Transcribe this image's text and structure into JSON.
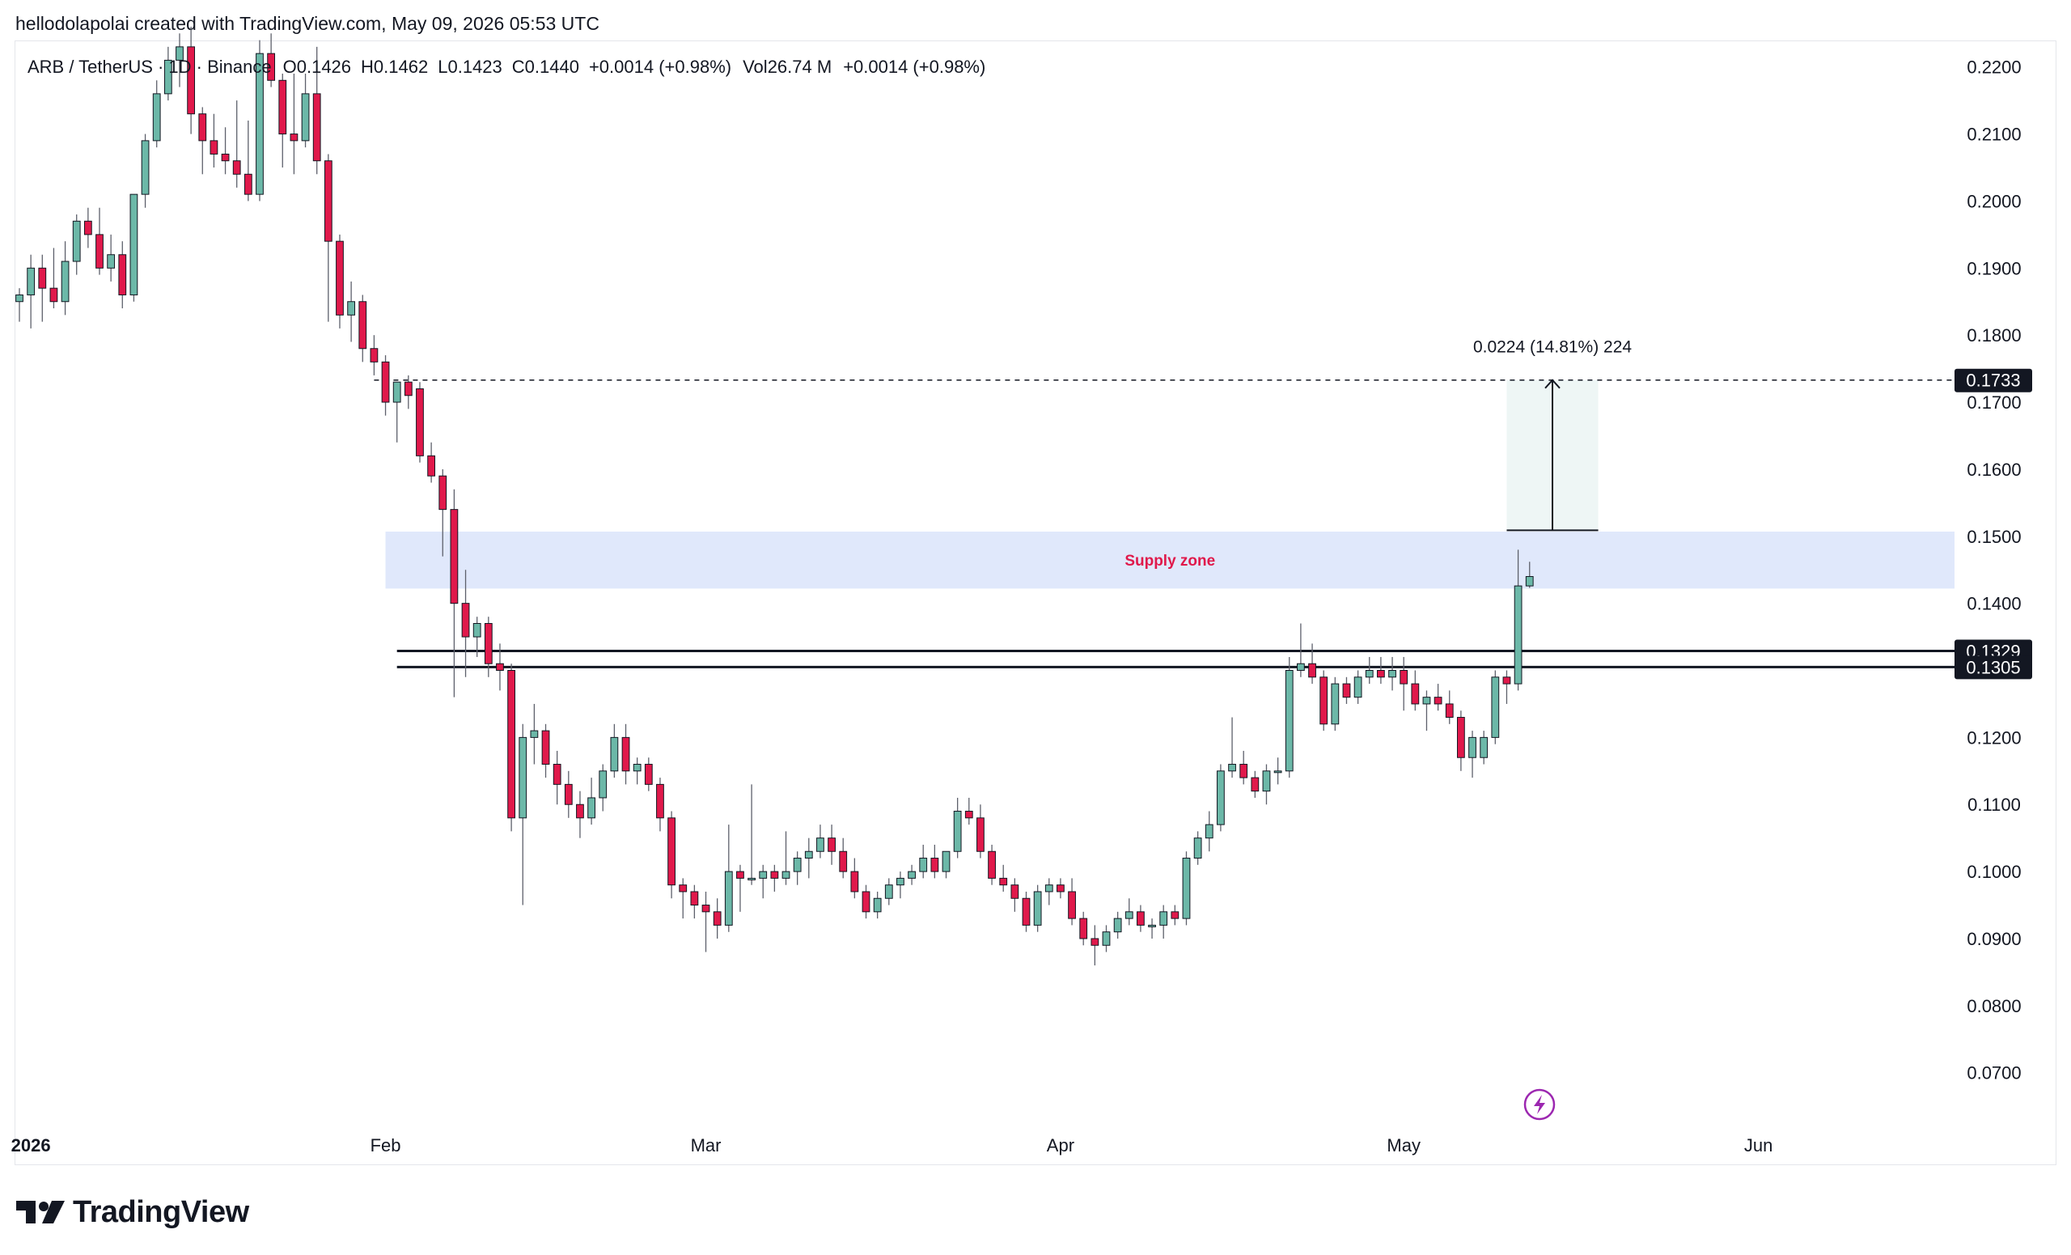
{
  "header": {
    "credit": "hellodolapolai created with TradingView.com, May 09, 2026 05:53 UTC"
  },
  "legend": {
    "symbol": "ARB / TetherUS · 1D · Binance",
    "open_label": "O",
    "open": "0.1426",
    "high_label": "H",
    "high": "0.1462",
    "low_label": "L",
    "low": "0.1423",
    "close_label": "C",
    "close": "0.1440",
    "change": "+0.0014 (+0.98%)",
    "vol_label": "Vol",
    "vol": "26.74 M",
    "vol_change": "+0.0014 (+0.98%)"
  },
  "annotations": {
    "supply_zone": "Supply zone",
    "measure": "0.0224 (14.81%) 224"
  },
  "logo": {
    "text": "TradingView"
  },
  "colors": {
    "up": "#6cb8a8",
    "down": "#e0194b",
    "zone_fill": "#e0e8fb",
    "zone_text": "#e0194b",
    "measure_fill": "#eef6f5",
    "bolt": "#9c27b0",
    "text": "#131722",
    "grid": "#e4e6eb"
  },
  "chart_data": {
    "type": "candlestick",
    "interval": "1D",
    "price_axis": {
      "range": [
        0.062,
        0.2225
      ],
      "ticks": [
        "0.2200",
        "0.2100",
        "0.2000",
        "0.1900",
        "0.1800",
        "0.1700",
        "0.1600",
        "0.1500",
        "0.1400",
        "0.1300",
        "0.1200",
        "0.1100",
        "0.1000",
        "0.0900",
        "0.0800",
        "0.0700"
      ]
    },
    "time_axis": {
      "range": [
        "2025-12-31",
        "2026-06-18"
      ],
      "labels": [
        {
          "label": "2026",
          "date": "2026-01-01",
          "bold": true
        },
        {
          "label": "Feb",
          "date": "2026-02-01",
          "bold": false
        },
        {
          "label": "Mar",
          "date": "2026-03-01",
          "bold": false
        },
        {
          "label": "Apr",
          "date": "2026-04-01",
          "bold": false
        },
        {
          "label": "May",
          "date": "2026-05-01",
          "bold": false
        },
        {
          "label": "Jun",
          "date": "2026-06-01",
          "bold": false
        }
      ]
    },
    "price_labels": [
      {
        "value": 0.1733,
        "text": "0.1733"
      },
      {
        "value": 0.1329,
        "text": "0.1329"
      },
      {
        "value": 0.1305,
        "text": "0.1305"
      }
    ],
    "horizontal_lines": [
      {
        "price": 0.1733,
        "from": "2026-01-31",
        "style": "dashed"
      },
      {
        "price": 0.1329,
        "from": "2026-02-02",
        "style": "solid"
      },
      {
        "price": 0.1305,
        "from": "2026-02-02",
        "style": "solid"
      }
    ],
    "supply_zone": {
      "from": "2026-02-01",
      "to": "2026-06-18",
      "low": 0.1422,
      "high": 0.1507
    },
    "measure": {
      "from": "2026-05-10",
      "to": "2026-05-18",
      "low": 0.1509,
      "high": 0.1733
    },
    "candles": [
      [
        "2025-12-31",
        0.185,
        0.187,
        0.182,
        0.186
      ],
      [
        "2026-01-01",
        0.186,
        0.192,
        0.181,
        0.19
      ],
      [
        "2026-01-02",
        0.19,
        0.192,
        0.182,
        0.187
      ],
      [
        "2026-01-03",
        0.187,
        0.193,
        0.184,
        0.185
      ],
      [
        "2026-01-04",
        0.185,
        0.194,
        0.183,
        0.191
      ],
      [
        "2026-01-05",
        0.191,
        0.198,
        0.189,
        0.197
      ],
      [
        "2026-01-06",
        0.197,
        0.199,
        0.193,
        0.195
      ],
      [
        "2026-01-07",
        0.195,
        0.199,
        0.189,
        0.19
      ],
      [
        "2026-01-08",
        0.19,
        0.195,
        0.188,
        0.192
      ],
      [
        "2026-01-09",
        0.192,
        0.194,
        0.184,
        0.186
      ],
      [
        "2026-01-10",
        0.186,
        0.201,
        0.185,
        0.201
      ],
      [
        "2026-01-11",
        0.201,
        0.21,
        0.199,
        0.209
      ],
      [
        "2026-01-12",
        0.209,
        0.218,
        0.208,
        0.216
      ],
      [
        "2026-01-13",
        0.216,
        0.223,
        0.215,
        0.221
      ],
      [
        "2026-01-14",
        0.221,
        0.225,
        0.217,
        0.223
      ],
      [
        "2026-01-15",
        0.223,
        0.226,
        0.21,
        0.213
      ],
      [
        "2026-01-16",
        0.213,
        0.214,
        0.204,
        0.209
      ],
      [
        "2026-01-17",
        0.209,
        0.213,
        0.205,
        0.207
      ],
      [
        "2026-01-18",
        0.207,
        0.211,
        0.204,
        0.206
      ],
      [
        "2026-01-19",
        0.206,
        0.215,
        0.202,
        0.204
      ],
      [
        "2026-01-20",
        0.204,
        0.212,
        0.2,
        0.201
      ],
      [
        "2026-01-21",
        0.201,
        0.224,
        0.2,
        0.222
      ],
      [
        "2026-01-22",
        0.222,
        0.225,
        0.217,
        0.218
      ],
      [
        "2026-01-23",
        0.218,
        0.219,
        0.205,
        0.21
      ],
      [
        "2026-01-24",
        0.21,
        0.219,
        0.204,
        0.209
      ],
      [
        "2026-01-25",
        0.209,
        0.219,
        0.208,
        0.216
      ],
      [
        "2026-01-26",
        0.216,
        0.223,
        0.204,
        0.206
      ],
      [
        "2026-01-27",
        0.206,
        0.207,
        0.182,
        0.194
      ],
      [
        "2026-01-28",
        0.194,
        0.195,
        0.181,
        0.183
      ],
      [
        "2026-01-29",
        0.183,
        0.188,
        0.179,
        0.185
      ],
      [
        "2026-01-30",
        0.185,
        0.186,
        0.176,
        0.178
      ],
      [
        "2026-01-31",
        0.178,
        0.18,
        0.174,
        0.176
      ],
      [
        "2026-02-01",
        0.176,
        0.177,
        0.168,
        0.17
      ],
      [
        "2026-02-02",
        0.17,
        0.172,
        0.164,
        0.173
      ],
      [
        "2026-02-03",
        0.173,
        0.174,
        0.169,
        0.171
      ],
      [
        "2026-02-04",
        0.172,
        0.173,
        0.161,
        0.162
      ],
      [
        "2026-02-05",
        0.162,
        0.164,
        0.158,
        0.159
      ],
      [
        "2026-02-06",
        0.159,
        0.16,
        0.147,
        0.154
      ],
      [
        "2026-02-07",
        0.154,
        0.157,
        0.126,
        0.14
      ],
      [
        "2026-02-08",
        0.14,
        0.145,
        0.129,
        0.135
      ],
      [
        "2026-02-09",
        0.135,
        0.138,
        0.132,
        0.137
      ],
      [
        "2026-02-10",
        0.137,
        0.138,
        0.129,
        0.131
      ],
      [
        "2026-02-11",
        0.131,
        0.134,
        0.127,
        0.13
      ],
      [
        "2026-02-12",
        0.13,
        0.131,
        0.106,
        0.108
      ],
      [
        "2026-02-13",
        0.108,
        0.122,
        0.095,
        0.12
      ],
      [
        "2026-02-14",
        0.12,
        0.125,
        0.116,
        0.121
      ],
      [
        "2026-02-15",
        0.121,
        0.122,
        0.114,
        0.116
      ],
      [
        "2026-02-16",
        0.116,
        0.118,
        0.11,
        0.113
      ],
      [
        "2026-02-17",
        0.113,
        0.115,
        0.108,
        0.11
      ],
      [
        "2026-02-18",
        0.11,
        0.112,
        0.105,
        0.108
      ],
      [
        "2026-02-19",
        0.108,
        0.114,
        0.107,
        0.111
      ],
      [
        "2026-02-20",
        0.111,
        0.116,
        0.109,
        0.115
      ],
      [
        "2026-02-21",
        0.115,
        0.122,
        0.114,
        0.12
      ],
      [
        "2026-02-22",
        0.12,
        0.122,
        0.113,
        0.115
      ],
      [
        "2026-02-23",
        0.115,
        0.117,
        0.113,
        0.116
      ],
      [
        "2026-02-24",
        0.116,
        0.117,
        0.112,
        0.113
      ],
      [
        "2026-02-25",
        0.113,
        0.114,
        0.106,
        0.108
      ],
      [
        "2026-02-26",
        0.108,
        0.109,
        0.096,
        0.098
      ],
      [
        "2026-02-27",
        0.098,
        0.099,
        0.093,
        0.097
      ],
      [
        "2026-02-28",
        0.097,
        0.098,
        0.093,
        0.095
      ],
      [
        "2026-03-01",
        0.095,
        0.097,
        0.088,
        0.094
      ],
      [
        "2026-03-02",
        0.094,
        0.096,
        0.09,
        0.092
      ],
      [
        "2026-03-03",
        0.092,
        0.107,
        0.091,
        0.1
      ],
      [
        "2026-03-04",
        0.1,
        0.101,
        0.094,
        0.099
      ],
      [
        "2026-03-05",
        0.099,
        0.113,
        0.098,
        0.099
      ],
      [
        "2026-03-06",
        0.099,
        0.101,
        0.096,
        0.1
      ],
      [
        "2026-03-07",
        0.1,
        0.101,
        0.097,
        0.099
      ],
      [
        "2026-03-08",
        0.099,
        0.106,
        0.098,
        0.1
      ],
      [
        "2026-03-09",
        0.1,
        0.103,
        0.098,
        0.102
      ],
      [
        "2026-03-10",
        0.102,
        0.105,
        0.099,
        0.103
      ],
      [
        "2026-03-11",
        0.103,
        0.107,
        0.102,
        0.105
      ],
      [
        "2026-03-12",
        0.105,
        0.107,
        0.101,
        0.103
      ],
      [
        "2026-03-13",
        0.103,
        0.105,
        0.099,
        0.1
      ],
      [
        "2026-03-14",
        0.1,
        0.102,
        0.096,
        0.097
      ],
      [
        "2026-03-15",
        0.097,
        0.098,
        0.093,
        0.094
      ],
      [
        "2026-03-16",
        0.094,
        0.097,
        0.093,
        0.096
      ],
      [
        "2026-03-17",
        0.096,
        0.099,
        0.095,
        0.098
      ],
      [
        "2026-03-18",
        0.098,
        0.1,
        0.096,
        0.099
      ],
      [
        "2026-03-19",
        0.099,
        0.101,
        0.098,
        0.1
      ],
      [
        "2026-03-20",
        0.1,
        0.104,
        0.099,
        0.102
      ],
      [
        "2026-03-21",
        0.102,
        0.104,
        0.099,
        0.1
      ],
      [
        "2026-03-22",
        0.1,
        0.103,
        0.099,
        0.103
      ],
      [
        "2026-03-23",
        0.103,
        0.111,
        0.102,
        0.109
      ],
      [
        "2026-03-24",
        0.109,
        0.111,
        0.107,
        0.108
      ],
      [
        "2026-03-25",
        0.108,
        0.11,
        0.102,
        0.103
      ],
      [
        "2026-03-26",
        0.103,
        0.104,
        0.098,
        0.099
      ],
      [
        "2026-03-27",
        0.099,
        0.101,
        0.097,
        0.098
      ],
      [
        "2026-03-28",
        0.098,
        0.099,
        0.094,
        0.096
      ],
      [
        "2026-03-29",
        0.096,
        0.097,
        0.091,
        0.092
      ],
      [
        "2026-03-30",
        0.092,
        0.098,
        0.091,
        0.097
      ],
      [
        "2026-03-31",
        0.097,
        0.099,
        0.095,
        0.098
      ],
      [
        "2026-04-01",
        0.098,
        0.099,
        0.096,
        0.097
      ],
      [
        "2026-04-02",
        0.097,
        0.099,
        0.092,
        0.093
      ],
      [
        "2026-04-03",
        0.093,
        0.094,
        0.089,
        0.09
      ],
      [
        "2026-04-04",
        0.09,
        0.092,
        0.086,
        0.089
      ],
      [
        "2026-04-05",
        0.089,
        0.092,
        0.088,
        0.091
      ],
      [
        "2026-04-06",
        0.091,
        0.094,
        0.09,
        0.093
      ],
      [
        "2026-04-07",
        0.093,
        0.096,
        0.092,
        0.094
      ],
      [
        "2026-04-08",
        0.094,
        0.095,
        0.091,
        0.092
      ],
      [
        "2026-04-09",
        0.092,
        0.093,
        0.09,
        0.092
      ],
      [
        "2026-04-10",
        0.092,
        0.095,
        0.09,
        0.094
      ],
      [
        "2026-04-11",
        0.094,
        0.095,
        0.092,
        0.093
      ],
      [
        "2026-04-12",
        0.093,
        0.103,
        0.092,
        0.102
      ],
      [
        "2026-04-13",
        0.102,
        0.106,
        0.101,
        0.105
      ],
      [
        "2026-04-14",
        0.105,
        0.109,
        0.103,
        0.107
      ],
      [
        "2026-04-15",
        0.107,
        0.116,
        0.106,
        0.115
      ],
      [
        "2026-04-16",
        0.115,
        0.123,
        0.114,
        0.116
      ],
      [
        "2026-04-17",
        0.116,
        0.118,
        0.113,
        0.114
      ],
      [
        "2026-04-18",
        0.114,
        0.115,
        0.111,
        0.112
      ],
      [
        "2026-04-19",
        0.112,
        0.116,
        0.11,
        0.115
      ],
      [
        "2026-04-20",
        0.115,
        0.117,
        0.113,
        0.115
      ],
      [
        "2026-04-21",
        0.115,
        0.132,
        0.114,
        0.13
      ],
      [
        "2026-04-22",
        0.13,
        0.137,
        0.129,
        0.131
      ],
      [
        "2026-04-23",
        0.131,
        0.134,
        0.128,
        0.129
      ],
      [
        "2026-04-24",
        0.129,
        0.13,
        0.121,
        0.122
      ],
      [
        "2026-04-25",
        0.122,
        0.129,
        0.121,
        0.128
      ],
      [
        "2026-04-26",
        0.128,
        0.129,
        0.125,
        0.126
      ],
      [
        "2026-04-27",
        0.126,
        0.13,
        0.125,
        0.129
      ],
      [
        "2026-04-28",
        0.129,
        0.132,
        0.128,
        0.13
      ],
      [
        "2026-04-29",
        0.13,
        0.132,
        0.128,
        0.129
      ],
      [
        "2026-04-30",
        0.129,
        0.132,
        0.127,
        0.13
      ],
      [
        "2026-05-01",
        0.13,
        0.132,
        0.124,
        0.128
      ],
      [
        "2026-05-02",
        0.128,
        0.13,
        0.124,
        0.125
      ],
      [
        "2026-05-03",
        0.125,
        0.127,
        0.121,
        0.126
      ],
      [
        "2026-05-04",
        0.126,
        0.128,
        0.124,
        0.125
      ],
      [
        "2026-05-05",
        0.125,
        0.127,
        0.122,
        0.123
      ],
      [
        "2026-05-06",
        0.123,
        0.124,
        0.115,
        0.117
      ],
      [
        "2026-05-07",
        0.117,
        0.121,
        0.114,
        0.12
      ],
      [
        "2026-05-08",
        0.117,
        0.121,
        0.116,
        0.12
      ],
      [
        "2026-05-09",
        0.12,
        0.13,
        0.119,
        0.129
      ],
      [
        "2026-05-10",
        0.129,
        0.13,
        0.125,
        0.128
      ],
      [
        "2026-05-11",
        0.128,
        0.148,
        0.127,
        0.1426
      ],
      [
        "2026-05-12",
        0.1426,
        0.1462,
        0.1423,
        0.144
      ]
    ]
  }
}
